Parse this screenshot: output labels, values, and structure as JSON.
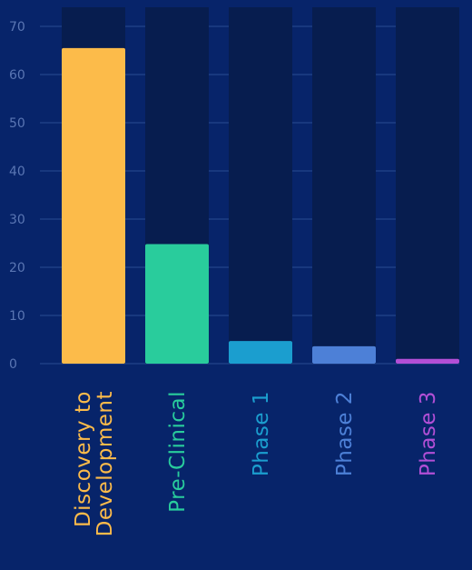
{
  "chart_data": {
    "type": "bar",
    "categories": [
      "Discovery to Development",
      "Pre-Clinical",
      "Phase 1",
      "Phase 2",
      "Phase 3"
    ],
    "category_lines": [
      [
        "Discovery to",
        "Development"
      ],
      [
        "Pre-Clinical"
      ],
      [
        "Phase 1"
      ],
      [
        "Phase 2"
      ],
      [
        "Phase 3"
      ]
    ],
    "values": [
      65.5,
      24.8,
      4.7,
      3.6,
      1.0
    ],
    "ylim": [
      0,
      74
    ],
    "yticks": [
      "0",
      "10",
      "20",
      "30",
      "40",
      "50",
      "60",
      "70"
    ],
    "grid": true,
    "title": "",
    "xlabel": "",
    "ylabel": "",
    "colors": [
      "#fcbb4a",
      "#29cc9c",
      "#1b9ecf",
      "#4d80d7",
      "#b24fd6"
    ],
    "track_color": "#071d4f",
    "background": "#07246a",
    "grid_color": "#1e3f85",
    "tick_color": "#5a76b3"
  }
}
